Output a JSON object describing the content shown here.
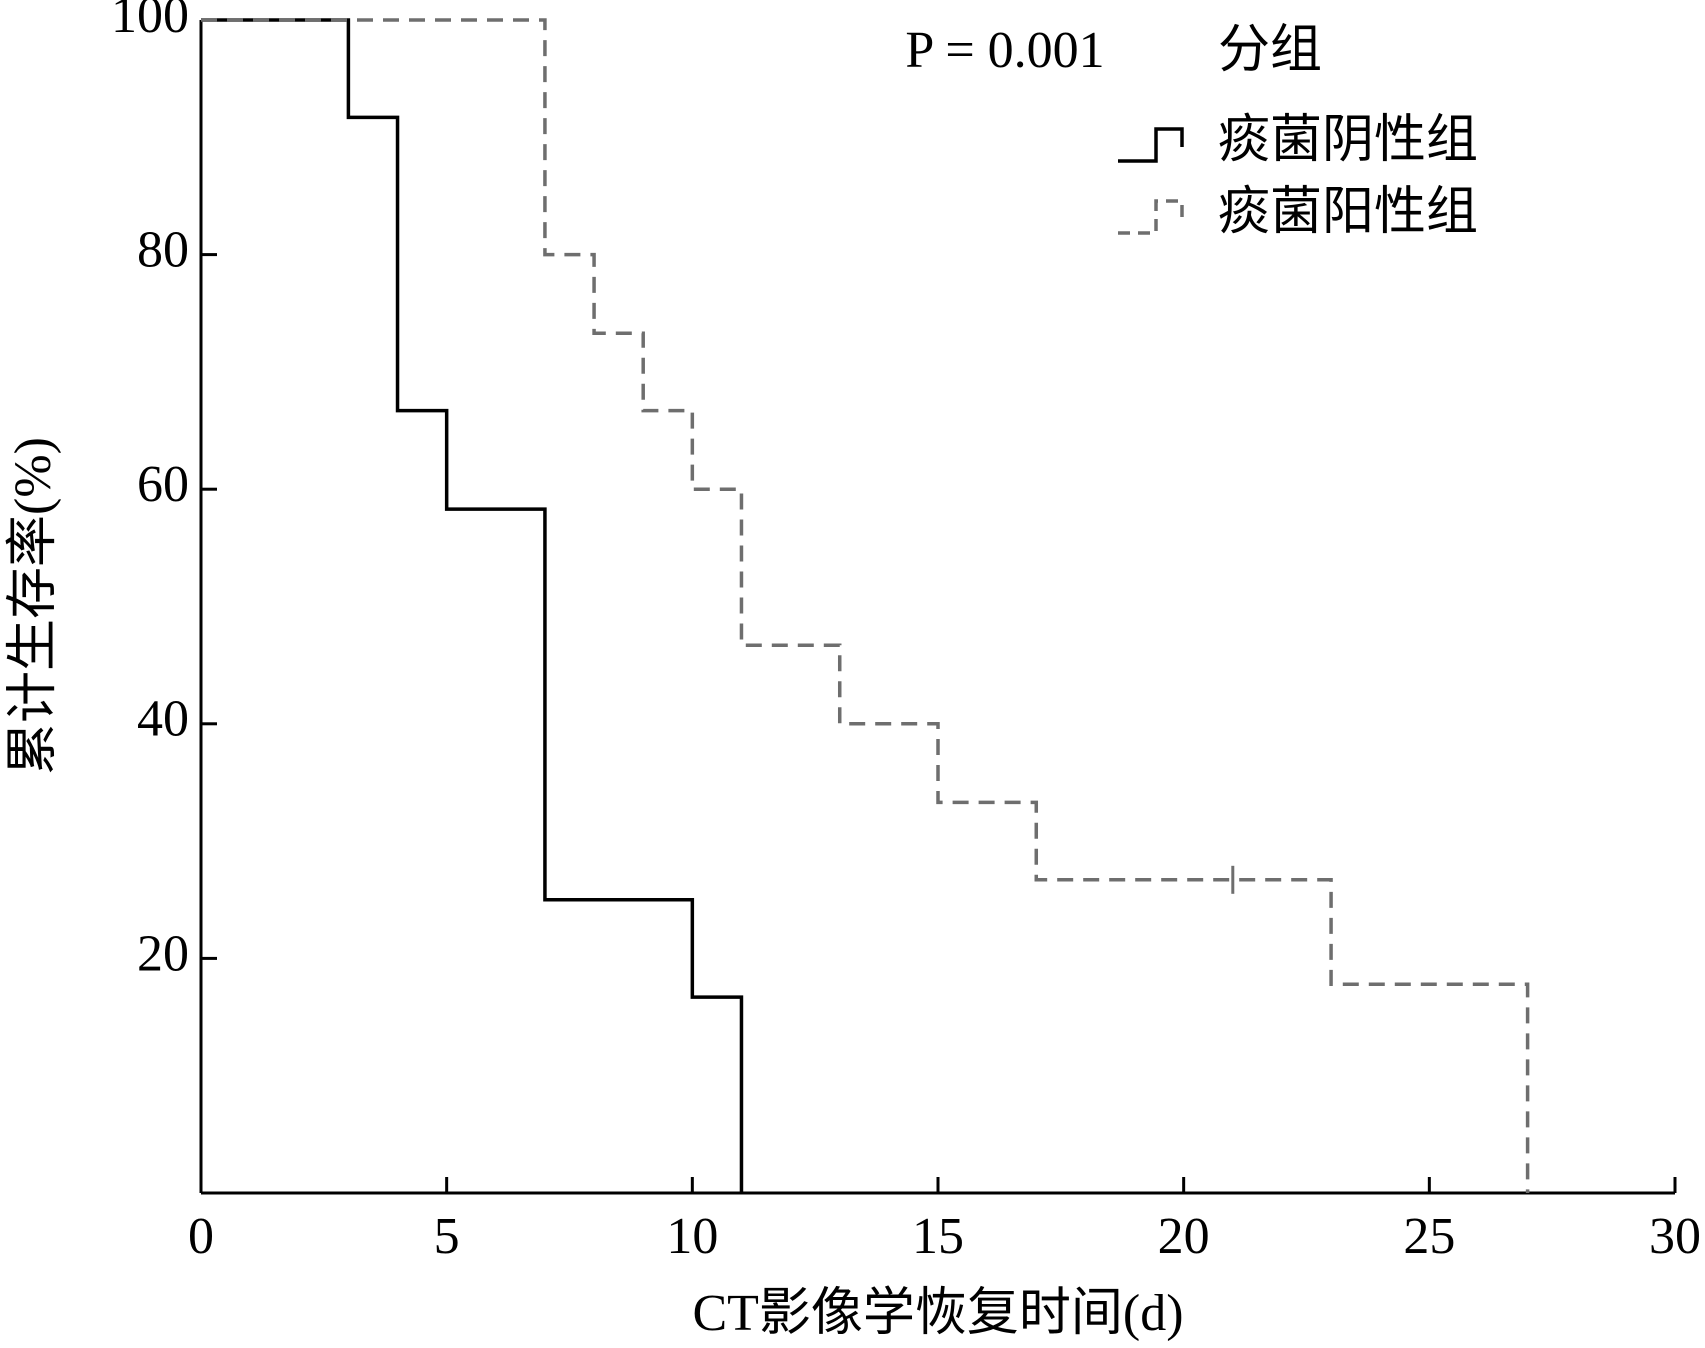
{
  "chart_data": {
    "type": "step",
    "xlabel": "CT影像学恢复时间(d)",
    "ylabel": "累计生存率(%)",
    "annotation": "P = 0.001",
    "legend_title": "分组",
    "legend_position": "upper right",
    "xlim": [
      0,
      30
    ],
    "xticks": [
      0,
      5,
      10,
      15,
      20,
      25,
      30
    ],
    "ylim": [
      0,
      100
    ],
    "yticks": [
      20,
      40,
      60,
      80,
      100
    ],
    "series": [
      {
        "name": "痰菌阴性组",
        "color": "#000000",
        "dash": "solid",
        "x": [
          0,
          3,
          4,
          5,
          7,
          10,
          11
        ],
        "values": [
          100,
          91.7,
          66.7,
          58.3,
          25,
          16.7,
          0
        ]
      },
      {
        "name": "痰菌阳性组",
        "color": "#6e6e6e",
        "dash": "dashed",
        "x": [
          0,
          7,
          8,
          9,
          10,
          11,
          13,
          15,
          17,
          23,
          27
        ],
        "values": [
          100,
          80,
          73.3,
          66.7,
          60,
          46.7,
          40,
          33.3,
          26.7,
          17.8,
          0
        ],
        "censored": {
          "x": [
            21
          ],
          "values": [
            26.7
          ]
        }
      }
    ]
  }
}
